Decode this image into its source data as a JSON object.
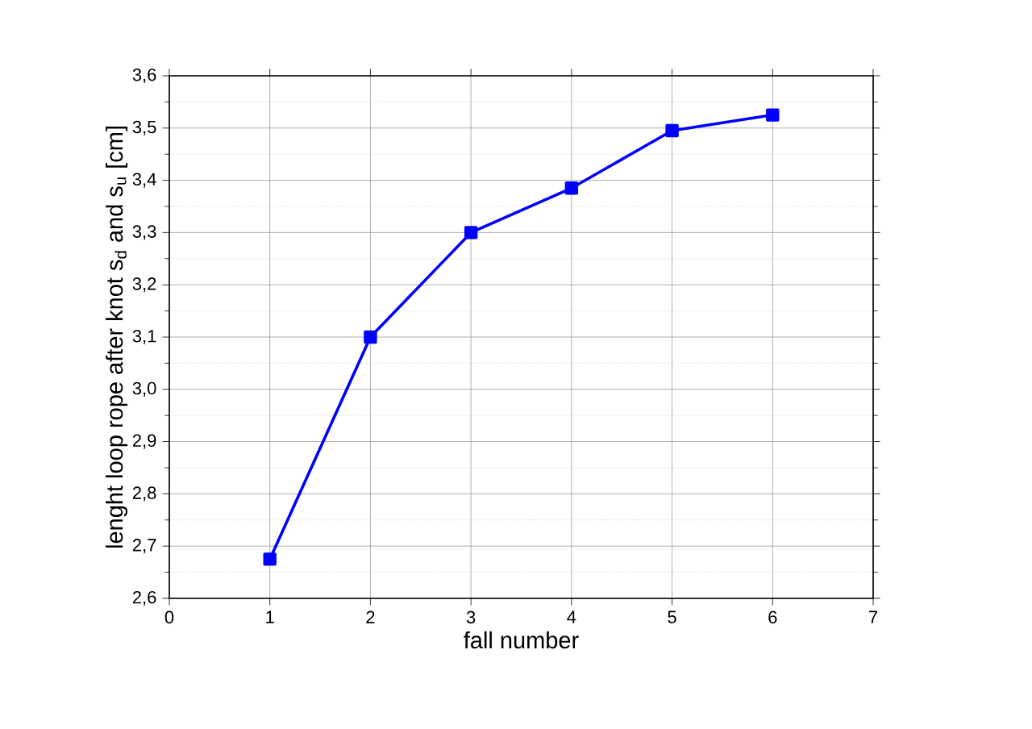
{
  "chart_data": {
    "type": "line",
    "xlabel": "fall number",
    "ylabel": "lenght loop rope after knot s$_{d}$ and s$_{u}$ [cm]",
    "x": [
      1,
      2,
      3,
      4,
      5,
      6
    ],
    "series": [
      {
        "color": "#0000ff",
        "values": [
          2.675,
          3.1,
          3.3,
          3.385,
          3.495,
          3.525
        ]
      }
    ],
    "xlim": [
      0,
      7
    ],
    "xticks": [
      0,
      1,
      2,
      3,
      4,
      5,
      6,
      7
    ],
    "ylim": [
      2.6,
      3.6
    ],
    "yticks": [
      {
        "value": 2.6,
        "label": "2,6"
      },
      {
        "value": 2.7,
        "label": "2,7"
      },
      {
        "value": 2.8,
        "label": "2,8"
      },
      {
        "value": 2.9,
        "label": "2,9"
      },
      {
        "value": 3.0,
        "label": "3,0"
      },
      {
        "value": 3.1,
        "label": "3,1"
      },
      {
        "value": 3.2,
        "label": "3,2"
      },
      {
        "value": 3.3,
        "label": "3,3"
      },
      {
        "value": 3.4,
        "label": "3,4"
      },
      {
        "value": 3.5,
        "label": "3,5"
      },
      {
        "value": 3.6,
        "label": "3,6"
      }
    ],
    "grid": true,
    "marker": "square",
    "line_style": "solid"
  }
}
